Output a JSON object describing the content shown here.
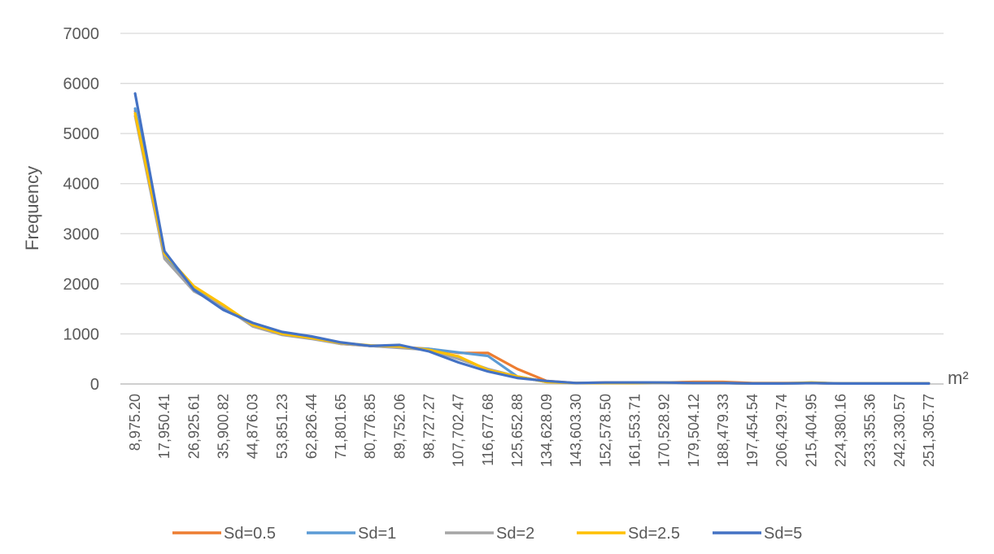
{
  "chart_data": {
    "type": "line",
    "title": "",
    "xlabel": "m²",
    "ylabel": "Frequency",
    "ylim": [
      0,
      7000
    ],
    "yticks": [
      "0",
      "1000",
      "2000",
      "3000",
      "4000",
      "5000",
      "6000",
      "7000"
    ],
    "grid": true,
    "legend_position": "bottom",
    "categories": [
      "8,975.20",
      "17,950.41",
      "26,925.61",
      "35,900.82",
      "44,876.03",
      "53,851.23",
      "62,826.44",
      "71,801.65",
      "80,776.85",
      "89,752.06",
      "98,727.27",
      "107,702.47",
      "116,677.68",
      "125,652.88",
      "134,628.09",
      "143,603.30",
      "152,578.50",
      "161,553.71",
      "170,528.92",
      "179,504.12",
      "188,479.33",
      "197,454.54",
      "206,429.74",
      "215,404.95",
      "224,380.16",
      "233,355.36",
      "242,330.57",
      "251,305.77"
    ],
    "series": [
      {
        "name": "Sd=0.5",
        "color": "#ED7D31",
        "values": [
          5450,
          2550,
          1880,
          1500,
          1200,
          1000,
          920,
          800,
          760,
          740,
          700,
          620,
          620,
          300,
          60,
          20,
          30,
          30,
          30,
          40,
          40,
          20,
          20,
          20,
          10,
          10,
          10,
          10
        ]
      },
      {
        "name": "Sd=1",
        "color": "#5B9BD5",
        "values": [
          5500,
          2580,
          1900,
          1520,
          1180,
          1000,
          920,
          810,
          760,
          730,
          700,
          630,
          560,
          150,
          40,
          20,
          20,
          30,
          30,
          20,
          20,
          10,
          10,
          20,
          10,
          10,
          10,
          10
        ]
      },
      {
        "name": "Sd=2",
        "color": "#A5A5A5",
        "values": [
          5350,
          2500,
          1850,
          1550,
          1150,
          980,
          900,
          800,
          760,
          720,
          680,
          500,
          300,
          150,
          40,
          20,
          20,
          20,
          30,
          20,
          20,
          10,
          10,
          20,
          10,
          10,
          10,
          10
        ]
      },
      {
        "name": "Sd=2.5",
        "color": "#FFC000",
        "values": [
          5400,
          2600,
          1950,
          1580,
          1180,
          1000,
          920,
          820,
          770,
          750,
          680,
          550,
          280,
          150,
          40,
          20,
          20,
          20,
          30,
          20,
          20,
          10,
          10,
          30,
          10,
          10,
          10,
          10
        ]
      },
      {
        "name": "Sd=5",
        "color": "#4472C4",
        "values": [
          5800,
          2650,
          1880,
          1480,
          1220,
          1040,
          950,
          830,
          760,
          780,
          650,
          430,
          250,
          120,
          60,
          20,
          30,
          30,
          30,
          20,
          20,
          10,
          10,
          20,
          10,
          10,
          10,
          10
        ]
      }
    ]
  }
}
